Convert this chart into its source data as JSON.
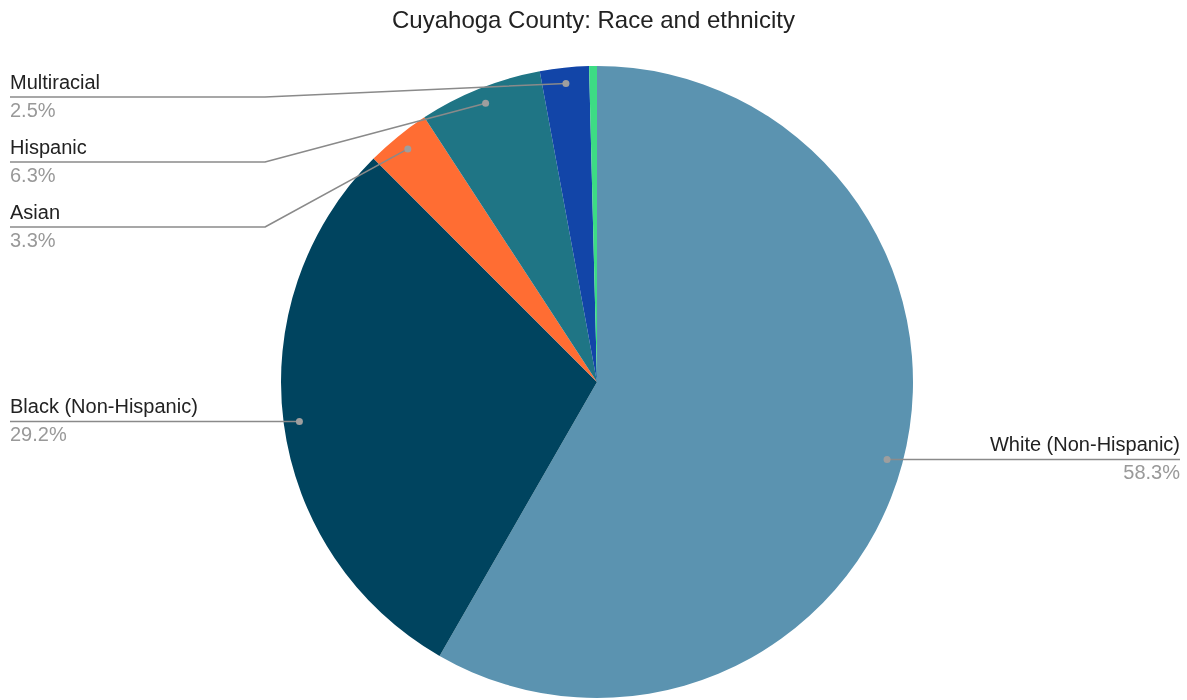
{
  "chart_data": {
    "type": "pie",
    "title": "Cuyahoga County: Race and ethnicity",
    "categories": [
      "White (Non-Hispanic)",
      "Black (Non-Hispanic)",
      "Asian",
      "Hispanic",
      "Multiracial",
      null
    ],
    "values": [
      58.3,
      29.2,
      3.3,
      6.3,
      2.5,
      0.4
    ],
    "value_labels": [
      "58.3%",
      "29.2%",
      "3.3%",
      "6.3%",
      "2.5%",
      null
    ],
    "colors": [
      "#5b93b0",
      "#00445f",
      "#ff6d33",
      "#1f7585",
      "#1245a8",
      "#3ddc84"
    ],
    "legend": false
  }
}
